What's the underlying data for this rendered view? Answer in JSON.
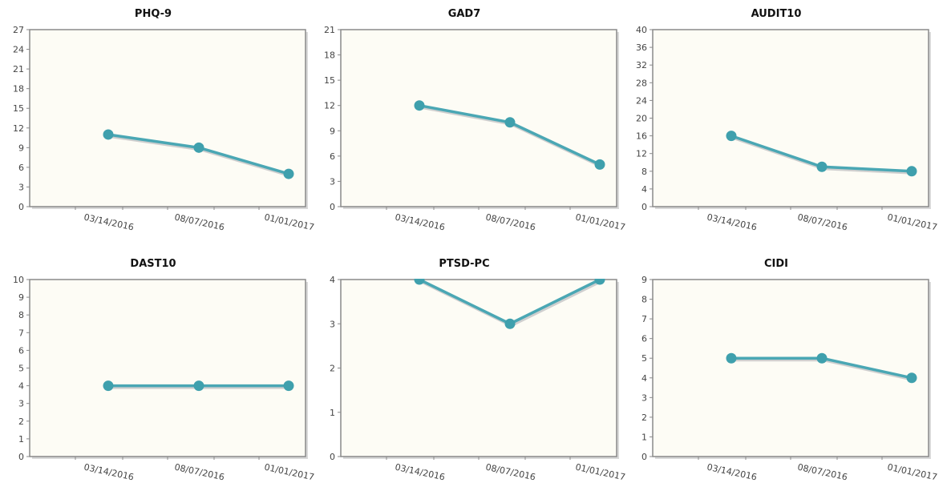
{
  "colors": {
    "plot_background": "#fdfcf5",
    "plot_border": "#8a8a8a",
    "series_line": "#4aa7b4",
    "series_point": "#3fa0ad",
    "tick_text": "#444444",
    "title_text": "#111111"
  },
  "chart_data": [
    {
      "type": "line",
      "title": "PHQ-9",
      "categories": [
        "03/14/2016",
        "08/07/2016",
        "01/01/2017"
      ],
      "values": [
        11,
        9,
        5
      ],
      "ylim": [
        0,
        27
      ],
      "yticks": [
        "0",
        "3",
        "6",
        "9",
        "12",
        "15",
        "18",
        "21",
        "24",
        "27"
      ],
      "grid": false
    },
    {
      "type": "line",
      "title": "GAD7",
      "categories": [
        "03/14/2016",
        "08/07/2016",
        "01/01/2017"
      ],
      "values": [
        12,
        10,
        5
      ],
      "ylim": [
        0,
        21
      ],
      "yticks": [
        "0",
        "3",
        "6",
        "9",
        "12",
        "15",
        "18",
        "21"
      ],
      "grid": false
    },
    {
      "type": "line",
      "title": "AUDIT10",
      "categories": [
        "03/14/2016",
        "08/07/2016",
        "01/01/2017"
      ],
      "values": [
        16,
        9,
        8
      ],
      "ylim": [
        0,
        40
      ],
      "yticks": [
        "0",
        "4",
        "8",
        "12",
        "16",
        "20",
        "24",
        "28",
        "32",
        "36",
        "40"
      ],
      "grid": false
    },
    {
      "type": "line",
      "title": "DAST10",
      "categories": [
        "03/14/2016",
        "08/07/2016",
        "01/01/2017"
      ],
      "values": [
        4,
        4,
        4
      ],
      "ylim": [
        0,
        10
      ],
      "yticks": [
        "0",
        "1",
        "2",
        "3",
        "4",
        "5",
        "6",
        "7",
        "8",
        "9",
        "10"
      ],
      "grid": false
    },
    {
      "type": "line",
      "title": "PTSD-PC",
      "categories": [
        "03/14/2016",
        "08/07/2016",
        "01/01/2017"
      ],
      "values": [
        4,
        3,
        4
      ],
      "ylim": [
        0,
        4
      ],
      "yticks": [
        "0",
        "1",
        "2",
        "3",
        "4"
      ],
      "grid": false
    },
    {
      "type": "line",
      "title": "CIDI",
      "categories": [
        "03/14/2016",
        "08/07/2016",
        "01/01/2017"
      ],
      "values": [
        5,
        5,
        4
      ],
      "ylim": [
        0,
        9
      ],
      "yticks": [
        "0",
        "1",
        "2",
        "3",
        "4",
        "5",
        "6",
        "7",
        "8",
        "9"
      ],
      "grid": false
    }
  ]
}
